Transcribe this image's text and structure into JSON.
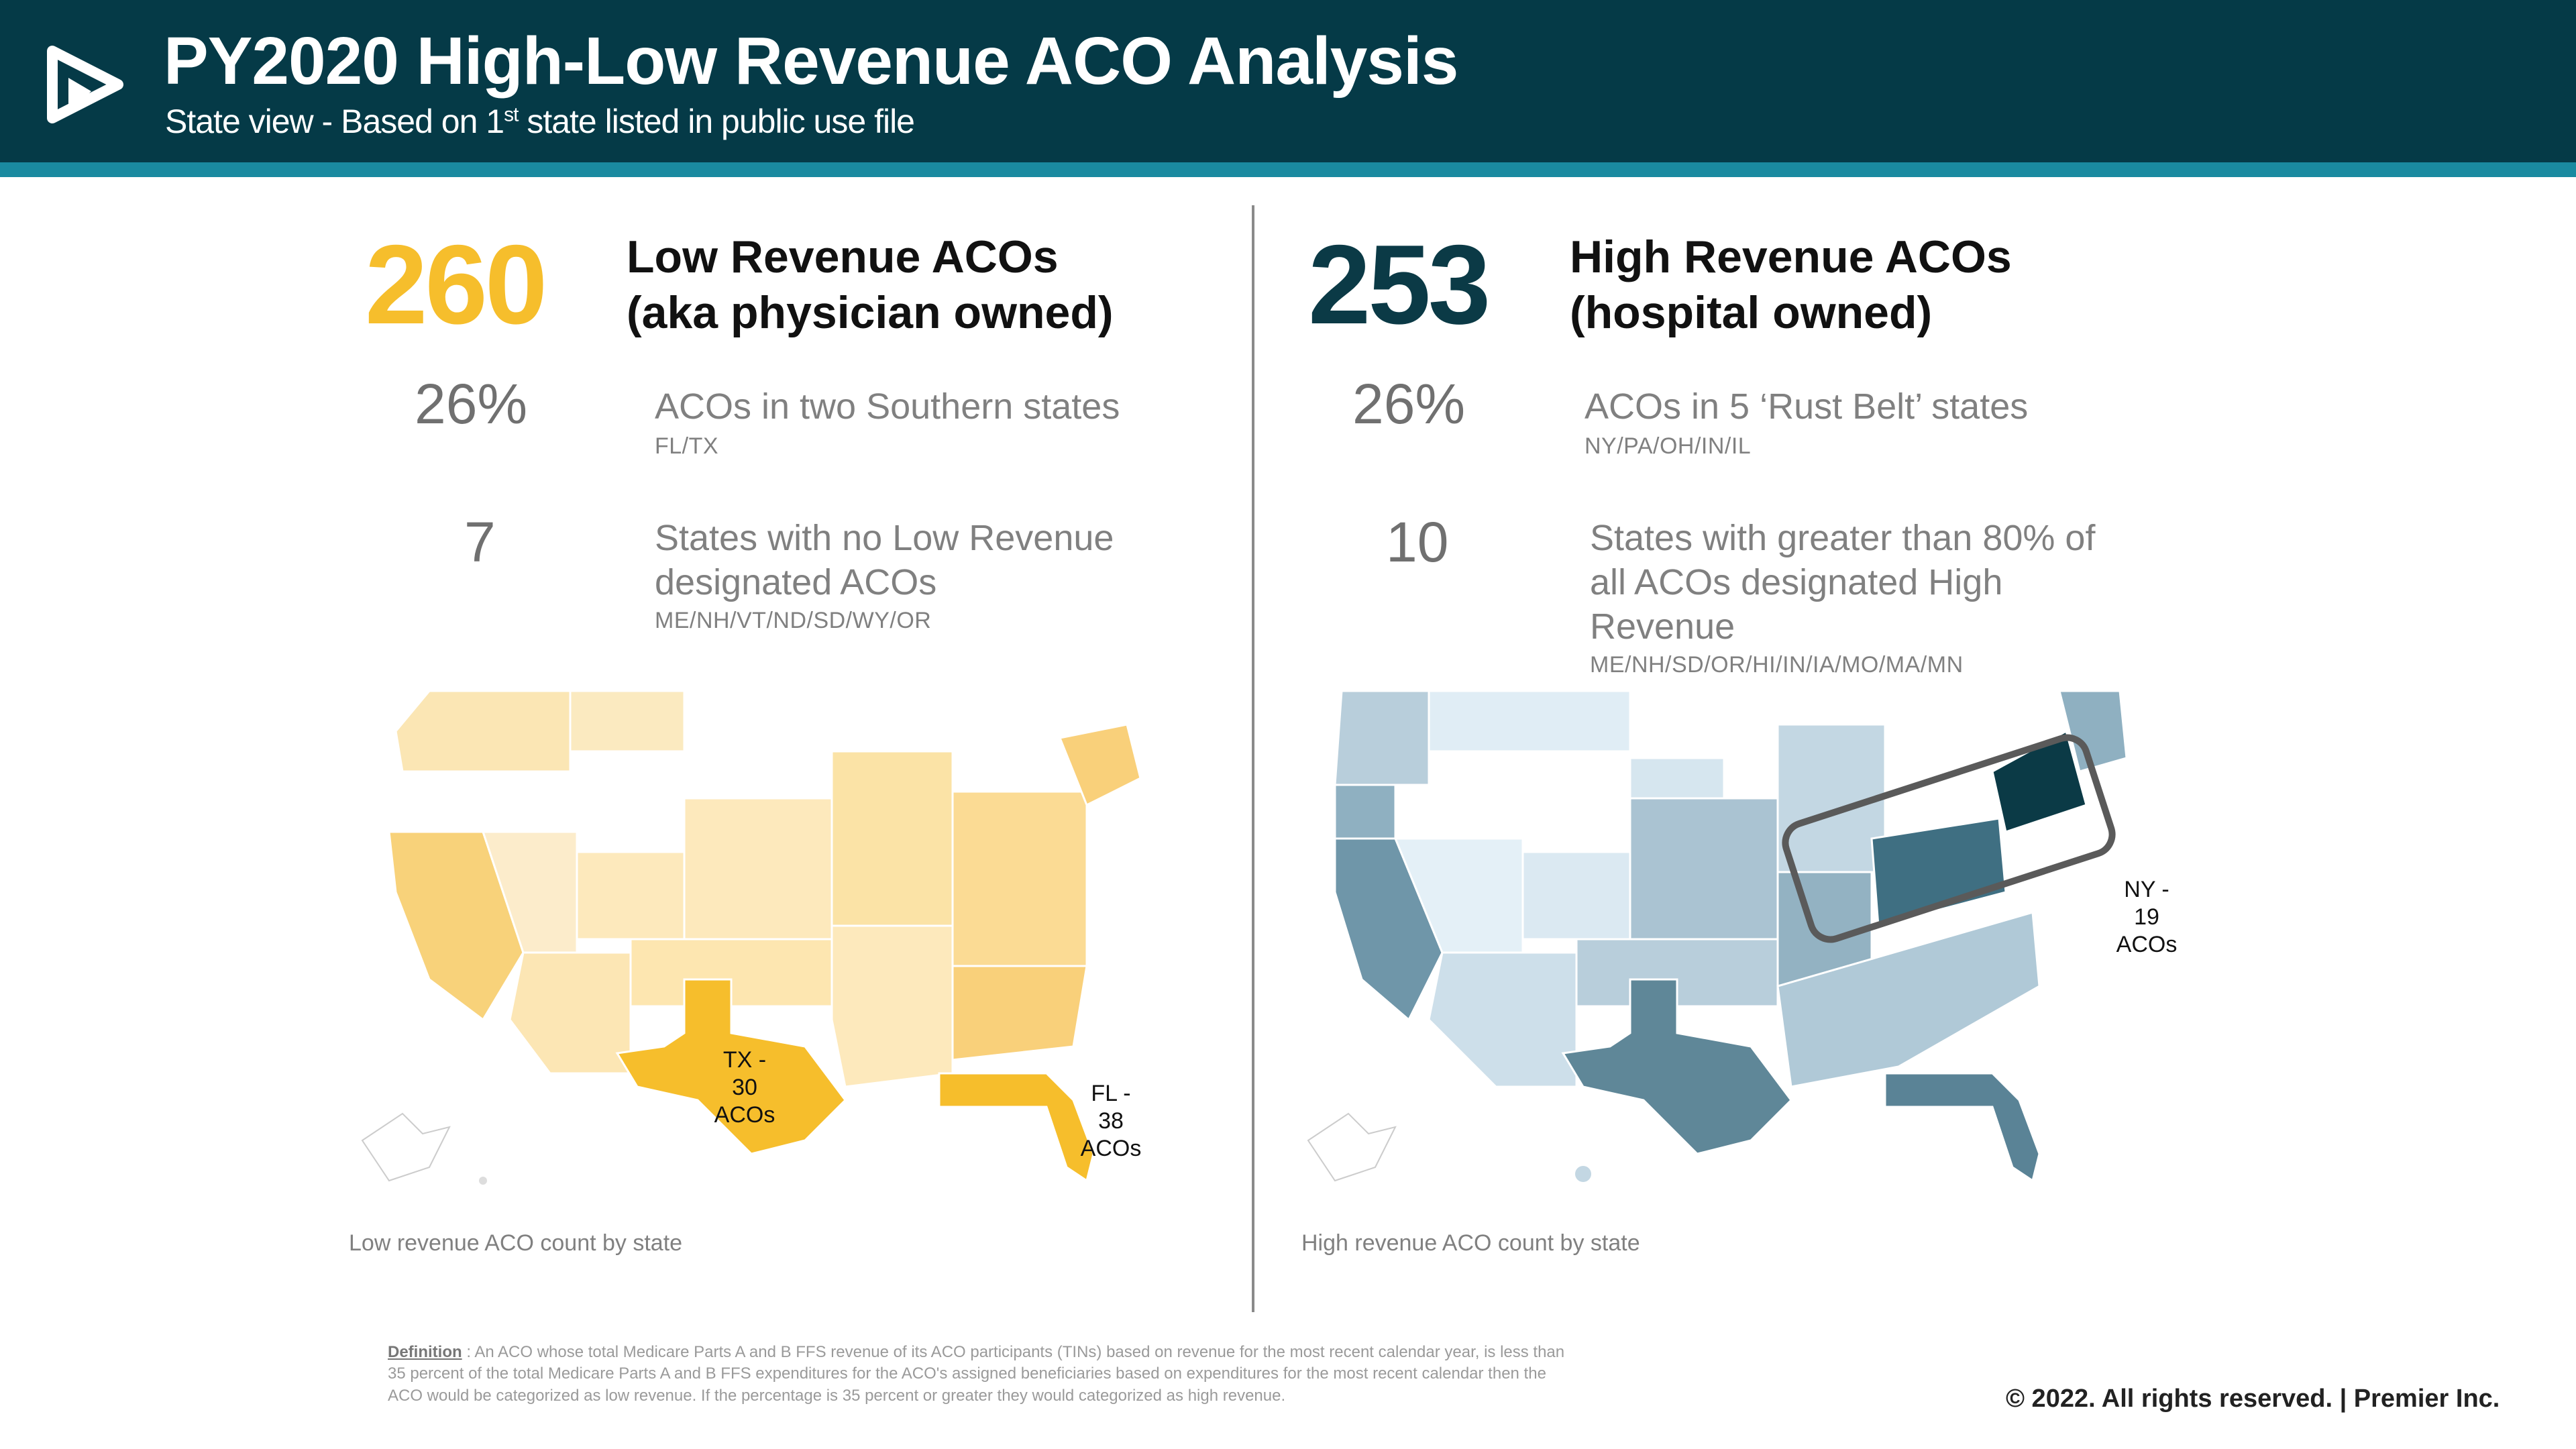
{
  "header": {
    "title": "PY2020 High-Low Revenue ACO Analysis",
    "subtitle_pre": "State view  - Based  on 1",
    "subtitle_sup": "st",
    "subtitle_post": " state listed  in public  use file",
    "logo_icon": "premier-play-logo-icon"
  },
  "low": {
    "count": "260",
    "title_line1": "Low Revenue ACOs",
    "title_line2": "(aka physician owned)",
    "stat1_value": "26%",
    "stat1_text": "ACOs in two  Southern states",
    "stat1_sub": "FL/TX",
    "stat2_value": "7",
    "stat2_text_line1": "States with  no Low Revenue",
    "stat2_text_line2": "designated ACOs",
    "stat2_sub": "ME/NH/VT/ND/SD/WY/OR",
    "tx_label": [
      "TX -",
      "30",
      "ACOs"
    ],
    "fl_label": [
      "FL -",
      "38",
      "ACOs"
    ],
    "caption": "Low revenue ACO count by state",
    "accent_color": "#f6be2c"
  },
  "high": {
    "count": "253",
    "title_line1": "High Revenue ACOs",
    "title_line2": "(hospital owned)",
    "stat1_value": "26%",
    "stat1_text": "ACOs in 5 ‘Rust Belt’  states",
    "stat1_sub": "NY/PA/OH/IN/IL",
    "stat2_value": "10",
    "stat2_text_line1": "States with greater than 80% of",
    "stat2_text_line2": "all ACOs designated High",
    "stat2_text_line3": "Revenue",
    "stat2_sub": "ME/NH/SD/OR/HI/IN/IA/MO/MA/MN",
    "ny_label": [
      "NY -",
      "19",
      "ACOs"
    ],
    "caption": "High revenue ACO count by state",
    "accent_color": "#0b3a46"
  },
  "footer": {
    "definition_head": "Definition",
    "definition_text": " : An ACO whose total Medicare Parts A and B FFS revenue of its ACO participants (TINs) based on revenue for the most recent calendar year, is less than 35 percent of the total Medicare Parts A and B FFS expenditures for the ACO's assigned beneficiaries based on expenditures for the most recent calendar then the ACO would be categorized as low revenue. If the percentage is 35 percent or greater they would categorized as high revenue.",
    "copyright": "© 2022. All  rights reserved.   |  Premier Inc."
  }
}
